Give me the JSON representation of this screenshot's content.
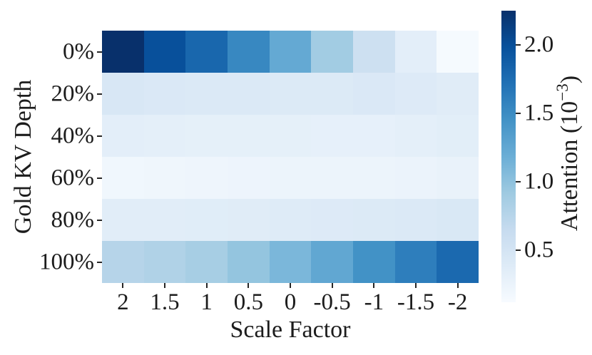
{
  "figure": {
    "background": "#ffffff",
    "text_color": "#1c1c1c",
    "tick_color": "#262626"
  },
  "chart_data": {
    "type": "heatmap",
    "title": "",
    "xlabel": "Scale Factor",
    "ylabel": "Gold KV Depth",
    "x_categories": [
      "2",
      "1.5",
      "1",
      "0.5",
      "0",
      "-0.5",
      "-1",
      "-1.5",
      "-2"
    ],
    "y_categories": [
      "0%",
      "20%",
      "40%",
      "60%",
      "80%",
      "100%"
    ],
    "value_unit": "1e-3",
    "values": [
      [
        2.25,
        1.99,
        1.8,
        1.53,
        1.23,
        0.89,
        0.57,
        0.33,
        0.14
      ],
      [
        0.45,
        0.43,
        0.42,
        0.42,
        0.41,
        0.41,
        0.43,
        0.4,
        0.37
      ],
      [
        0.33,
        0.32,
        0.31,
        0.31,
        0.31,
        0.3,
        0.3,
        0.32,
        0.34
      ],
      [
        0.19,
        0.21,
        0.22,
        0.23,
        0.24,
        0.24,
        0.24,
        0.25,
        0.27
      ],
      [
        0.35,
        0.35,
        0.36,
        0.37,
        0.39,
        0.4,
        0.41,
        0.42,
        0.44
      ],
      [
        0.76,
        0.8,
        0.86,
        0.97,
        1.1,
        1.25,
        1.45,
        1.61,
        1.78
      ]
    ],
    "vmin": 0.12,
    "vmax": 2.25,
    "grid": false,
    "legend_position": "right-colorbar",
    "colorbar": {
      "label_base": "Attention (10",
      "label_exp": "−3",
      "label_end": ")",
      "ticks": [
        2.0,
        1.5,
        1.0,
        0.5
      ],
      "tick_labels": [
        "2.0",
        "1.5",
        "1.0",
        "0.5"
      ]
    },
    "colormap": {
      "name": "Blues",
      "stops": [
        {
          "t": 0.0,
          "color": "#f7fbff"
        },
        {
          "t": 0.125,
          "color": "#deebf7"
        },
        {
          "t": 0.25,
          "color": "#c6dbef"
        },
        {
          "t": 0.375,
          "color": "#9ecae1"
        },
        {
          "t": 0.5,
          "color": "#6baed6"
        },
        {
          "t": 0.625,
          "color": "#4292c6"
        },
        {
          "t": 0.75,
          "color": "#2171b5"
        },
        {
          "t": 0.875,
          "color": "#08519c"
        },
        {
          "t": 1.0,
          "color": "#08306b"
        }
      ]
    }
  }
}
